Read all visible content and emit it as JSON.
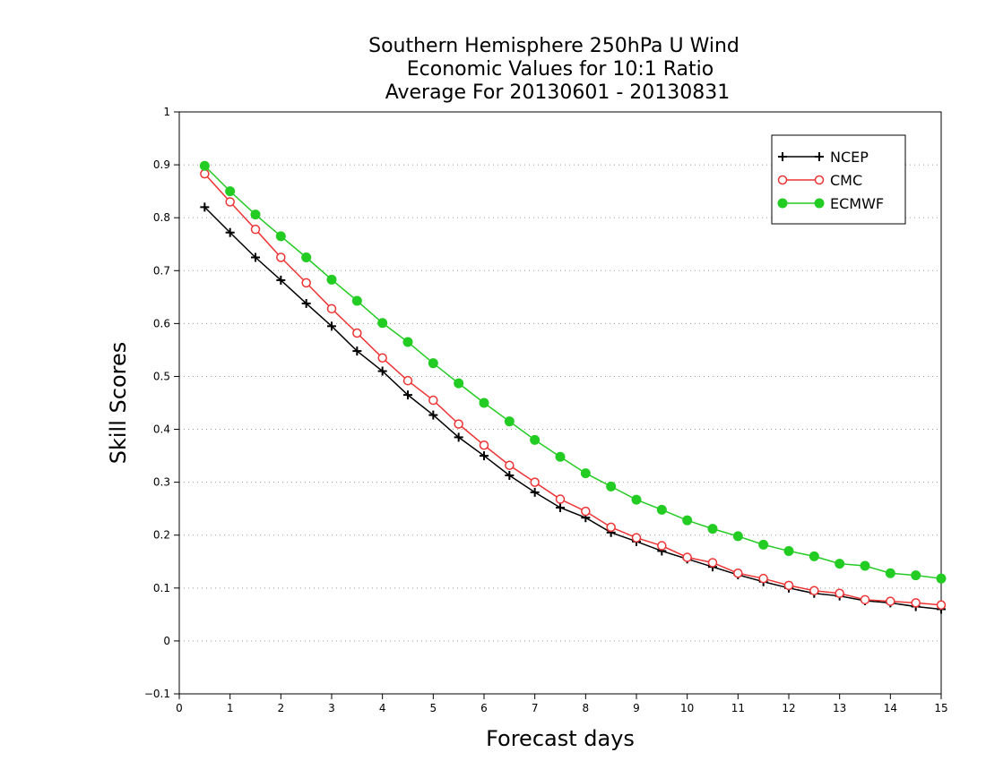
{
  "chart_data": {
    "type": "line",
    "title_lines": [
      "Southern Hemisphere 250hPa U Wind",
      "Economic Values for 10:1 Ratio",
      "Average For 20130601 - 20130831"
    ],
    "xlabel": "Forecast days",
    "ylabel": "Skill Scores",
    "xlim": [
      0,
      15
    ],
    "ylim": [
      -0.1,
      1
    ],
    "xticks": [
      0,
      1,
      2,
      3,
      4,
      5,
      6,
      7,
      8,
      9,
      10,
      11,
      12,
      13,
      14,
      15
    ],
    "xtick_labels": [
      "0",
      "1",
      "2",
      "3",
      "4",
      "5",
      "6",
      "7",
      "8",
      "9",
      "10",
      "11",
      "12",
      "13",
      "14",
      "15"
    ],
    "yticks": [
      -0.1,
      0,
      0.1,
      0.2,
      0.3,
      0.4,
      0.5,
      0.6,
      0.7,
      0.8,
      0.9,
      1
    ],
    "ytick_labels": [
      "−0.1",
      "0",
      "0.1",
      "0.2",
      "0.3",
      "0.4",
      "0.5",
      "0.6",
      "0.7",
      "0.8",
      "0.9",
      "1"
    ],
    "grid": true,
    "legend_position": "top-right",
    "x": [
      0.5,
      1,
      1.5,
      2,
      2.5,
      3,
      3.5,
      4,
      4.5,
      5,
      5.5,
      6,
      6.5,
      7,
      7.5,
      8,
      8.5,
      9,
      9.5,
      10,
      10.5,
      11,
      11.5,
      12,
      12.5,
      13,
      13.5,
      14,
      14.5,
      15
    ],
    "series": [
      {
        "name": "NCEP",
        "color": "#000000",
        "marker": "plus",
        "values": [
          0.82,
          0.772,
          0.725,
          0.682,
          0.638,
          0.595,
          0.548,
          0.51,
          0.465,
          0.427,
          0.385,
          0.35,
          0.313,
          0.281,
          0.252,
          0.233,
          0.205,
          0.188,
          0.17,
          0.155,
          0.14,
          0.125,
          0.112,
          0.1,
          0.09,
          0.085,
          0.076,
          0.072,
          0.065,
          0.06
        ]
      },
      {
        "name": "CMC",
        "color": "#ee3333",
        "marker": "open-circle",
        "values": [
          0.883,
          0.83,
          0.778,
          0.725,
          0.677,
          0.628,
          0.582,
          0.535,
          0.492,
          0.455,
          0.41,
          0.37,
          0.332,
          0.3,
          0.268,
          0.245,
          0.215,
          0.195,
          0.18,
          0.158,
          0.148,
          0.128,
          0.118,
          0.105,
          0.095,
          0.09,
          0.078,
          0.075,
          0.072,
          0.068
        ]
      },
      {
        "name": "ECMWF",
        "color": "#22cc22",
        "marker": "filled-circle",
        "values": [
          0.898,
          0.85,
          0.806,
          0.765,
          0.725,
          0.683,
          0.643,
          0.601,
          0.565,
          0.525,
          0.487,
          0.45,
          0.415,
          0.38,
          0.348,
          0.317,
          0.292,
          0.267,
          0.248,
          0.228,
          0.212,
          0.198,
          0.182,
          0.17,
          0.16,
          0.146,
          0.142,
          0.128,
          0.124,
          0.118
        ]
      }
    ]
  }
}
